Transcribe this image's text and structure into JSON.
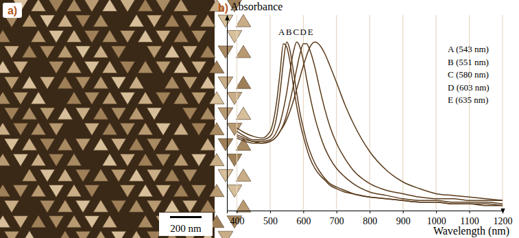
{
  "image_panel": {
    "label": "a)",
    "scale_bar": "200 nm"
  },
  "chart_data": {
    "type": "line",
    "title": "b)",
    "y_label": "Absorbance",
    "x_label": "Wavelength (nm)",
    "x": [
      400,
      425,
      450,
      475,
      500,
      520,
      530,
      540,
      550,
      560,
      570,
      580,
      590,
      600,
      610,
      620,
      635,
      650,
      665,
      680,
      700,
      725,
      750,
      800,
      850,
      900,
      950,
      1000,
      1050,
      1100,
      1150,
      1200
    ],
    "series": [
      {
        "name": "A (543 nm)",
        "color": "#5a3a1a",
        "values": [
          0.49,
          0.46,
          0.44,
          0.43,
          0.47,
          0.65,
          0.82,
          0.99,
          0.97,
          0.88,
          0.74,
          0.62,
          0.52,
          0.44,
          0.37,
          0.31,
          0.25,
          0.21,
          0.18,
          0.15,
          0.13,
          0.11,
          0.1,
          0.08,
          0.07,
          0.06,
          0.05,
          0.05,
          0.04,
          0.04,
          0.03,
          0.03
        ]
      },
      {
        "name": "B (551 nm)",
        "color": "#5a3a1a",
        "values": [
          0.47,
          0.44,
          0.42,
          0.42,
          0.44,
          0.56,
          0.7,
          0.88,
          1.0,
          0.95,
          0.83,
          0.7,
          0.58,
          0.49,
          0.41,
          0.35,
          0.28,
          0.23,
          0.19,
          0.16,
          0.14,
          0.12,
          0.1,
          0.08,
          0.07,
          0.06,
          0.05,
          0.05,
          0.04,
          0.04,
          0.04,
          0.03
        ]
      },
      {
        "name": "C (580 nm)",
        "color": "#5a3a1a",
        "values": [
          0.45,
          0.43,
          0.41,
          0.41,
          0.42,
          0.47,
          0.52,
          0.6,
          0.7,
          0.83,
          0.94,
          1.0,
          0.97,
          0.89,
          0.78,
          0.68,
          0.55,
          0.45,
          0.37,
          0.31,
          0.25,
          0.2,
          0.16,
          0.11,
          0.09,
          0.07,
          0.06,
          0.06,
          0.05,
          0.05,
          0.05,
          0.04
        ]
      },
      {
        "name": "D (603 nm)",
        "color": "#5a3a1a",
        "values": [
          0.44,
          0.42,
          0.41,
          0.4,
          0.41,
          0.44,
          0.47,
          0.51,
          0.57,
          0.65,
          0.74,
          0.84,
          0.93,
          0.99,
          0.99,
          0.95,
          0.85,
          0.72,
          0.6,
          0.5,
          0.4,
          0.31,
          0.24,
          0.16,
          0.12,
          0.1,
          0.08,
          0.07,
          0.07,
          0.06,
          0.06,
          0.06
        ]
      },
      {
        "name": "E (635 nm)",
        "color": "#5a3a1a",
        "values": [
          0.43,
          0.41,
          0.4,
          0.4,
          0.41,
          0.44,
          0.47,
          0.5,
          0.54,
          0.59,
          0.65,
          0.72,
          0.79,
          0.86,
          0.92,
          0.97,
          1.0,
          0.98,
          0.93,
          0.86,
          0.76,
          0.63,
          0.52,
          0.35,
          0.24,
          0.17,
          0.13,
          0.1,
          0.09,
          0.08,
          0.07,
          0.06
        ]
      }
    ],
    "annotations": [
      {
        "text": "A",
        "x": 543
      },
      {
        "text": "B",
        "x": 551
      },
      {
        "text": "C",
        "x": 580
      },
      {
        "text": "D",
        "x": 603
      },
      {
        "text": "E",
        "x": 635
      }
    ],
    "xlim": [
      370,
      1200
    ],
    "xticks": [
      400,
      500,
      600,
      700,
      800,
      900,
      1000,
      1100,
      1200
    ],
    "ylim": [
      0,
      1.16
    ],
    "yticks": [],
    "grid": true,
    "legend": "upper right",
    "tick_labels": "x"
  }
}
